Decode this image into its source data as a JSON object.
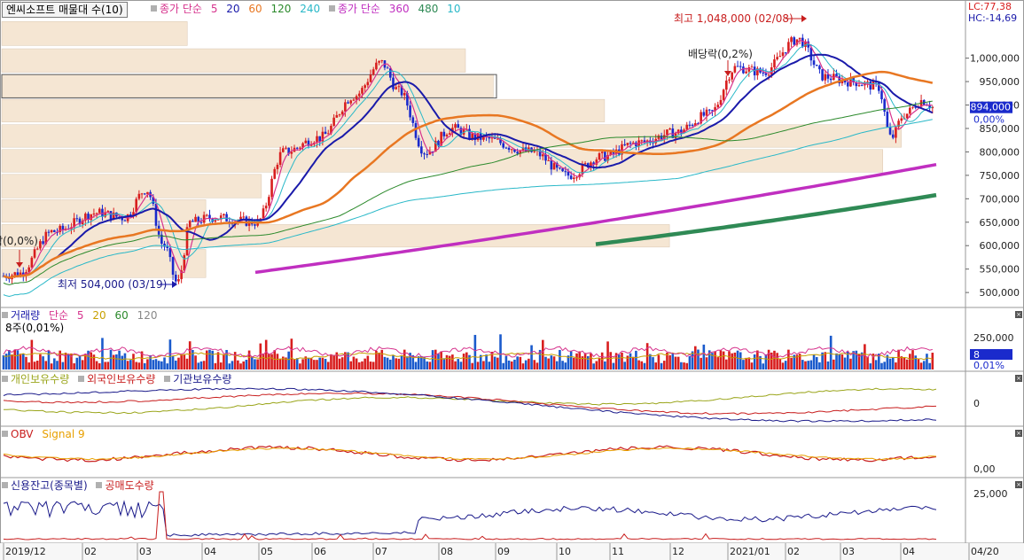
{
  "chart_data": {
    "type": "candlestick",
    "title": "엔씨소프트 매물대 수(10)",
    "x_ticks": [
      "2019/12",
      "02",
      "03",
      "04",
      "05",
      "06",
      "07",
      "08",
      "09",
      "10",
      "11",
      "12",
      "2021/01",
      "02",
      "03",
      "04",
      "04/20"
    ],
    "main": {
      "legend_ma_short": {
        "label": "종가 단순",
        "periods": [
          "5",
          "20",
          "60",
          "120",
          "240"
        ],
        "colors": [
          "#d6338d",
          "#1a1aaa",
          "#e87722",
          "#2c8a2c",
          "#29b8c8"
        ]
      },
      "legend_ma_long": {
        "label": "종가 단순",
        "periods": [
          "360",
          "480",
          "10"
        ],
        "colors": [
          "#c02fc0",
          "#2f8a55",
          "#1a1aaa"
        ]
      },
      "ylim": [
        470000,
        1090000
      ],
      "y_ticks": [
        "1,000,000",
        "950,000",
        "900,000",
        "850,000",
        "800,000",
        "750,000",
        "700,000",
        "650,000",
        "600,000",
        "550,000",
        "500,000"
      ],
      "y_tick_values": [
        1000000,
        950000,
        900000,
        850000,
        800000,
        750000,
        700000,
        650000,
        600000,
        550000,
        500000
      ],
      "current_price_label": "894,000",
      "current_price": 894000,
      "current_pct_label": "0,00%",
      "lc_label": "LC:77,38",
      "hc_label": "HC:-14,69",
      "annotations": {
        "high": "최고 1,048,000 (02/08)",
        "low": "최저 504,000 (03/19)",
        "dividend1": "배당락(0,2%)",
        "dividend2": "배당락(0,0%)"
      },
      "volume_profile_price_bands": [
        {
          "low": 1025000,
          "high": 1078000,
          "strength": 0.2
        },
        {
          "low": 968000,
          "high": 1020000,
          "strength": 0.5
        },
        {
          "low": 915000,
          "high": 965000,
          "strength": 0.53
        },
        {
          "low": 862000,
          "high": 912000,
          "strength": 0.65
        },
        {
          "low": 808000,
          "high": 858000,
          "strength": 0.97
        },
        {
          "low": 755000,
          "high": 805000,
          "strength": 0.95
        },
        {
          "low": 700000,
          "high": 752000,
          "strength": 0.28
        },
        {
          "low": 648000,
          "high": 698000,
          "strength": 0.22
        },
        {
          "low": 595000,
          "high": 645000,
          "strength": 0.72
        },
        {
          "low": 530000,
          "high": 592000,
          "strength": 0.22
        }
      ]
    },
    "volume": {
      "title": "거래량",
      "ma_label": "단순",
      "ma_periods": [
        "5",
        "20",
        "60",
        "120"
      ],
      "unit_label": "8주(0,01%)",
      "y_ticks": [
        "250,000"
      ],
      "current_label": "8",
      "pct_label": "0,01%"
    },
    "holdings": {
      "series_names": [
        "개인보유수량",
        "외국인보유수량",
        "기관보유수량"
      ],
      "colors": [
        "#9aa51a",
        "#c81e1e",
        "#1a1a8a"
      ],
      "y_ticks": [
        "0"
      ]
    },
    "obv": {
      "series_names": [
        "OBV",
        "Signal 9"
      ],
      "colors": [
        "#c81e1e",
        "#e8a000"
      ],
      "y_ticks": [
        "0,00"
      ]
    },
    "credit": {
      "series_names": [
        "신용잔고(종목별)",
        "공매도수량"
      ],
      "colors": [
        "#1a1a8a",
        "#c81e1e"
      ],
      "y_ticks": [
        "25,000"
      ]
    }
  }
}
